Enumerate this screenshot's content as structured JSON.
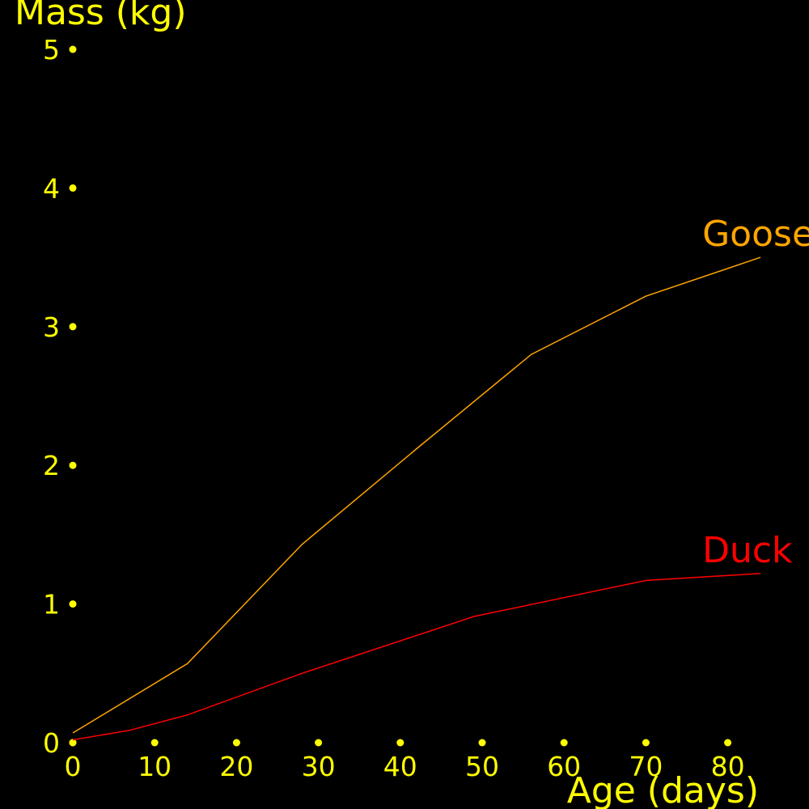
{
  "chart_data": {
    "type": "line",
    "title": "",
    "xlabel": "Age (days)",
    "ylabel": "Mass (kg)",
    "xlim": [
      0,
      84
    ],
    "ylim": [
      0,
      5
    ],
    "x_ticks": [
      0,
      10,
      20,
      30,
      40,
      50,
      60,
      70,
      80
    ],
    "y_ticks": [
      0,
      1,
      2,
      3,
      4,
      5
    ],
    "grid": false,
    "legend": "none",
    "series": [
      {
        "name": "Goose",
        "color": "#FFA500",
        "x": [
          0,
          14,
          28,
          42,
          56,
          70,
          84
        ],
        "y": [
          0.07,
          0.57,
          1.43,
          2.12,
          2.8,
          3.22,
          3.5
        ]
      },
      {
        "name": "Duck",
        "color": "#FF0000",
        "x": [
          0,
          7,
          14,
          28,
          49,
          70,
          84
        ],
        "y": [
          0.02,
          0.09,
          0.2,
          0.5,
          0.91,
          1.17,
          1.22
        ]
      }
    ],
    "axis_color": "#FFFF00",
    "background": "#000000"
  }
}
